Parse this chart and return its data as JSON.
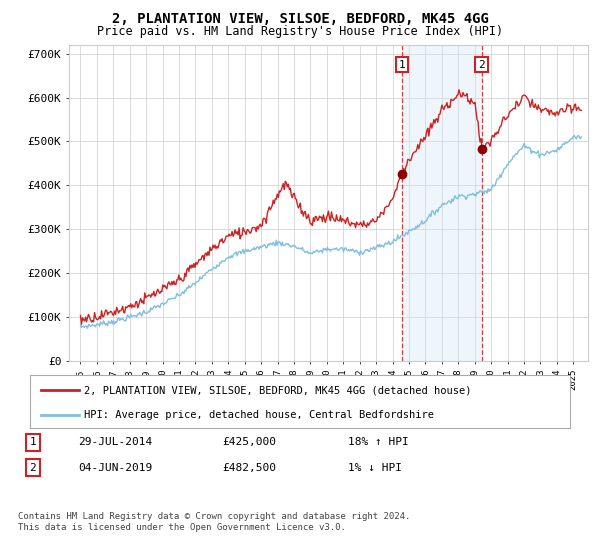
{
  "title": "2, PLANTATION VIEW, SILSOE, BEDFORD, MK45 4GG",
  "subtitle": "Price paid vs. HM Land Registry's House Price Index (HPI)",
  "legend_line1": "2, PLANTATION VIEW, SILSOE, BEDFORD, MK45 4GG (detached house)",
  "legend_line2": "HPI: Average price, detached house, Central Bedfordshire",
  "annotation1_label": "1",
  "annotation1_date": "29-JUL-2014",
  "annotation1_price": "£425,000",
  "annotation1_hpi": "18% ↑ HPI",
  "annotation2_label": "2",
  "annotation2_date": "04-JUN-2019",
  "annotation2_price": "£482,500",
  "annotation2_hpi": "1% ↓ HPI",
  "footer": "Contains HM Land Registry data © Crown copyright and database right 2024.\nThis data is licensed under the Open Government Licence v3.0.",
  "ylim": [
    0,
    720000
  ],
  "yticks": [
    0,
    100000,
    200000,
    300000,
    400000,
    500000,
    600000,
    700000
  ],
  "ytick_labels": [
    "£0",
    "£100K",
    "£200K",
    "£300K",
    "£400K",
    "£500K",
    "£600K",
    "£700K"
  ],
  "sale1_year": 2014.57,
  "sale1_price": 425000,
  "sale2_year": 2019.42,
  "sale2_price": 482500,
  "hpi_color": "#7fbfdf",
  "price_color": "#cc2222",
  "shade_color": "#d0e8f5",
  "background_color": "#ffffff",
  "grid_color": "#cccccc"
}
